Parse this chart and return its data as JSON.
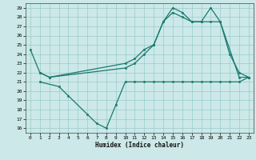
{
  "title": "",
  "xlabel": "Humidex (Indice chaleur)",
  "bg_color": "#cce8e8",
  "grid_color": "#99cccc",
  "line_color": "#1a7a6e",
  "xlim": [
    -0.5,
    23.5
  ],
  "ylim": [
    15.5,
    29.5
  ],
  "yticks": [
    16,
    17,
    18,
    19,
    20,
    21,
    22,
    23,
    24,
    25,
    26,
    27,
    28,
    29
  ],
  "xticks": [
    0,
    1,
    2,
    3,
    4,
    5,
    6,
    7,
    8,
    9,
    10,
    11,
    12,
    13,
    14,
    15,
    16,
    17,
    18,
    19,
    20,
    21,
    22,
    23
  ],
  "series": [
    {
      "x": [
        0,
        1,
        2,
        10,
        11,
        12,
        13,
        14,
        15,
        16,
        17,
        18,
        19,
        20,
        21,
        22,
        23
      ],
      "y": [
        24.5,
        22.0,
        21.5,
        23.0,
        23.5,
        24.5,
        25.0,
        27.5,
        29.0,
        28.5,
        27.5,
        27.5,
        27.5,
        27.5,
        24.0,
        22.0,
        21.5
      ]
    },
    {
      "x": [
        1,
        2,
        10,
        11,
        12,
        13,
        14,
        15,
        16,
        17,
        18,
        19,
        20,
        22,
        23
      ],
      "y": [
        22.0,
        21.5,
        22.5,
        23.0,
        24.0,
        25.0,
        27.5,
        28.5,
        28.0,
        27.5,
        27.5,
        29.0,
        27.5,
        21.5,
        21.5
      ]
    },
    {
      "x": [
        1,
        3,
        4,
        6,
        7,
        8,
        9,
        10,
        11,
        12,
        13,
        14,
        15,
        16,
        17,
        18,
        19,
        20,
        21,
        22,
        23
      ],
      "y": [
        21.0,
        20.5,
        19.5,
        17.5,
        16.5,
        16.0,
        18.5,
        21.0,
        21.0,
        21.0,
        21.0,
        21.0,
        21.0,
        21.0,
        21.0,
        21.0,
        21.0,
        21.0,
        21.0,
        21.0,
        21.5
      ]
    }
  ]
}
